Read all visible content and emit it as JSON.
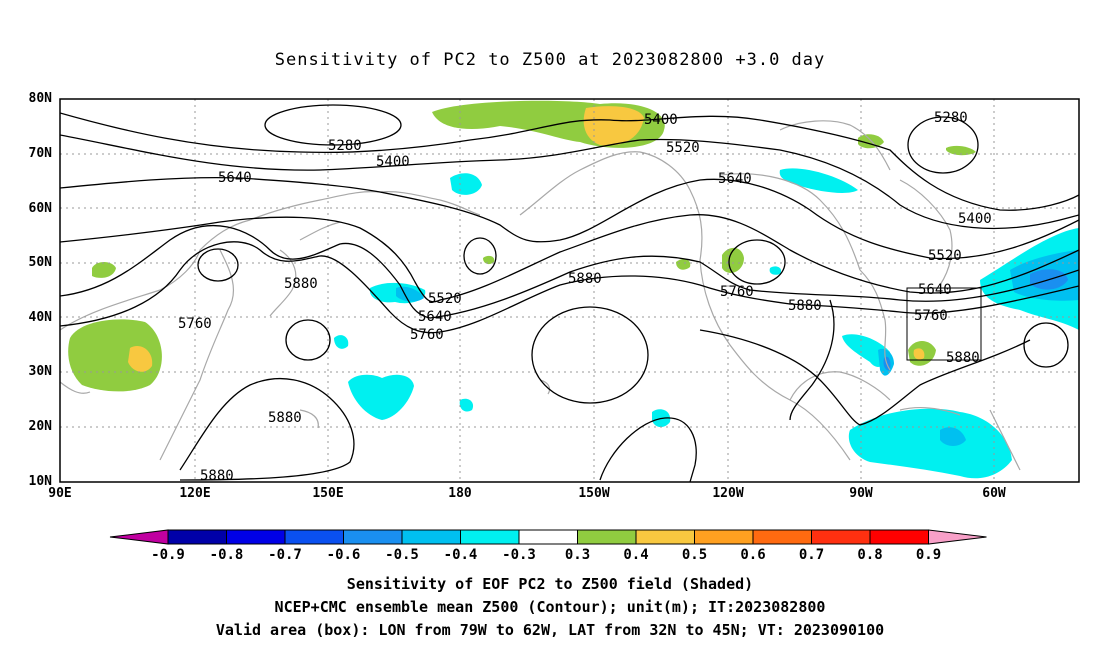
{
  "title": "Sensitivity of PC2 to Z500 at 2023082800 +3.0 day",
  "lat_labels": [
    "80N",
    "70N",
    "60N",
    "50N",
    "40N",
    "30N",
    "20N",
    "10N"
  ],
  "lon_labels": [
    "90E",
    "120E",
    "150E",
    "180",
    "150W",
    "120W",
    "90W",
    "60W"
  ],
  "colorbar": {
    "labels": [
      "-0.9",
      "-0.8",
      "-0.7",
      "-0.6",
      "-0.5",
      "-0.4",
      "-0.3",
      "0.3",
      "0.4",
      "0.5",
      "0.6",
      "0.7",
      "0.8",
      "0.9"
    ],
    "colors": [
      "#c000a0",
      "#0000a8",
      "#0000e6",
      "#0a50f0",
      "#1a8ff0",
      "#00c0f0",
      "#00f0f0",
      "#ffffff",
      "#90cc40",
      "#f8c840",
      "#ffa020",
      "#ff6a10",
      "#ff3010",
      "#ff0000",
      "#f8a0c8"
    ]
  },
  "contour_labels": [
    "5280",
    "5400",
    "5640",
    "5520",
    "5400",
    "5640",
    "5280",
    "5400",
    "5520",
    "5520",
    "5640",
    "5760",
    "5880",
    "5760",
    "5880",
    "5640",
    "5760",
    "5880",
    "5760",
    "5880",
    "5880",
    "5880"
  ],
  "captions": [
    "Sensitivity of EOF PC2 to Z500 field (Shaded)",
    "NCEP+CMC ensemble mean Z500 (Contour); unit(m); IT:2023082800",
    "Valid area (box): LON from 79W to 62W, LAT from 32N to 45N; VT: 2023090100"
  ]
}
